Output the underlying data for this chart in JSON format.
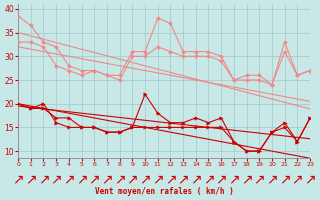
{
  "xlabel": "Vent moyen/en rafales ( km/h )",
  "xlim": [
    0,
    23
  ],
  "ylim": [
    8.5,
    41
  ],
  "yticks": [
    10,
    15,
    20,
    25,
    30,
    35,
    40
  ],
  "xticks": [
    0,
    1,
    2,
    3,
    4,
    5,
    6,
    7,
    8,
    9,
    10,
    11,
    12,
    13,
    14,
    15,
    16,
    17,
    18,
    19,
    20,
    21,
    22,
    23
  ],
  "bg_color": "#c8e8e8",
  "grid_color": "#a8cccc",
  "lines_light_jagged": [
    [
      38.5,
      36.5,
      33.0,
      32.0,
      28.0,
      27.0,
      27.0,
      26.0,
      26.0,
      31.0,
      31.0,
      38.0,
      37.0,
      31.0,
      31.0,
      31.0,
      30.0,
      25.0,
      26.0,
      26.0,
      24.0,
      33.0,
      26.0,
      27.0
    ],
    [
      33.0,
      33.0,
      32.0,
      28.0,
      27.0,
      26.0,
      27.0,
      26.0,
      25.0,
      30.0,
      30.0,
      32.0,
      31.0,
      30.0,
      30.0,
      30.0,
      29.0,
      25.0,
      25.0,
      25.0,
      24.0,
      31.0,
      26.0,
      27.0
    ]
  ],
  "lines_light_trend": [
    [
      35.0,
      34.3,
      33.6,
      32.9,
      32.2,
      31.5,
      30.8,
      30.1,
      29.4,
      28.7,
      28.0,
      27.3,
      26.6,
      25.9,
      25.2,
      24.5,
      23.8,
      23.1,
      22.4,
      21.7,
      21.0,
      20.3,
      19.6,
      18.9
    ],
    [
      32.0,
      31.5,
      31.0,
      30.5,
      30.0,
      29.5,
      29.0,
      28.5,
      28.0,
      27.5,
      27.0,
      26.5,
      26.0,
      25.5,
      25.0,
      24.5,
      24.0,
      23.5,
      23.0,
      22.5,
      22.0,
      21.5,
      21.0,
      20.5
    ]
  ],
  "lines_dark_jagged": [
    [
      20.0,
      19.0,
      20.0,
      16.0,
      15.0,
      15.0,
      15.0,
      14.0,
      14.0,
      15.0,
      22.0,
      18.0,
      16.0,
      16.0,
      17.0,
      16.0,
      17.0,
      12.0,
      10.0,
      10.0,
      14.0,
      16.0,
      12.0,
      17.0
    ],
    [
      20.0,
      19.0,
      19.0,
      17.0,
      17.0,
      15.0,
      15.0,
      14.0,
      14.0,
      15.0,
      15.0,
      15.0,
      15.0,
      15.0,
      15.0,
      15.0,
      15.0,
      12.0,
      10.0,
      10.0,
      14.0,
      15.0,
      12.0,
      17.0
    ]
  ],
  "lines_dark_trend": [
    [
      20.0,
      19.5,
      19.0,
      18.5,
      18.0,
      17.5,
      17.0,
      16.5,
      16.0,
      15.5,
      15.0,
      14.5,
      14.0,
      13.5,
      13.0,
      12.5,
      12.0,
      11.5,
      11.0,
      10.5,
      10.0,
      9.5,
      9.0,
      8.5
    ],
    [
      19.5,
      19.2,
      18.9,
      18.6,
      18.3,
      18.0,
      17.7,
      17.4,
      17.1,
      16.8,
      16.5,
      16.2,
      15.9,
      15.6,
      15.3,
      15.0,
      14.7,
      14.4,
      14.1,
      13.8,
      13.5,
      13.2,
      12.9,
      12.6
    ]
  ],
  "color_light": "#f08888",
  "color_dark": "#cc0000",
  "lw_jagged": 0.8,
  "lw_trend": 0.8,
  "markersize_light": 2.0,
  "markersize_dark": 2.5
}
